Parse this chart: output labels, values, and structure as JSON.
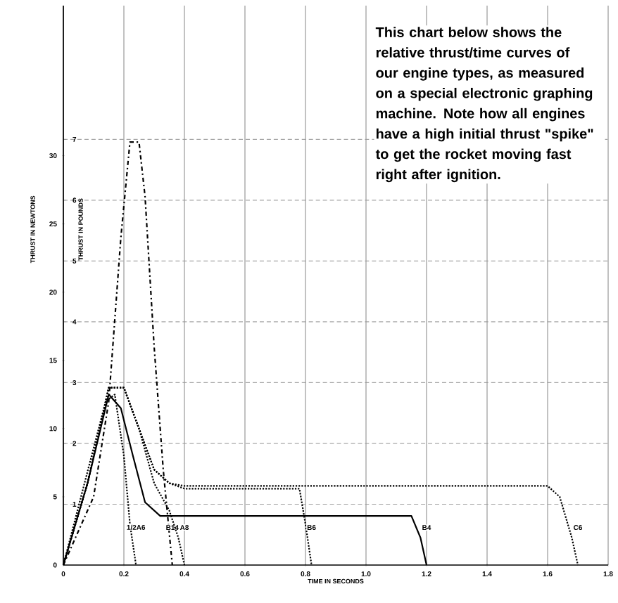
{
  "chart_data": {
    "type": "line",
    "xlabel": "TIME IN SECONDS",
    "ylabel": "THRUST IN NEWTONS",
    "y2label": "THRUST IN POUNDS",
    "annotations": [
      "This chart below shows the relative thrust/time curves of our engine types, as measured on a special electronic graphing machine. Note how all engines have a high initial thrust \"spike\" to get the rocket moving fast right after ignition."
    ],
    "xlim": [
      0,
      1.8
    ],
    "ylim": [
      0,
      41
    ],
    "y2lim": [
      0,
      9.2
    ],
    "xticks": [
      0,
      0.2,
      0.4,
      0.6,
      0.8,
      {
        "value": 1.0,
        "label": "1.0"
      },
      1.2,
      1.4,
      1.6,
      1.8
    ],
    "yticks": [
      0,
      5,
      10,
      15,
      20,
      25,
      30
    ],
    "y2ticks": [
      1,
      2,
      3,
      4,
      5,
      6,
      7
    ],
    "grid": true,
    "series": [
      {
        "name": "1/2A6",
        "color": "#000000",
        "line_style": "dotted",
        "x": [
          0,
          0.07,
          0.14,
          0.17,
          0.2,
          0.22,
          0.24
        ],
        "values": [
          0,
          6,
          12,
          12.5,
          8,
          3,
          0
        ]
      },
      {
        "name": "B14",
        "color": "#000000",
        "line_style": "dashdot",
        "x": [
          0,
          0.1,
          0.15,
          0.19,
          0.22,
          0.25,
          0.27,
          0.3,
          0.33,
          0.36
        ],
        "values": [
          0,
          5,
          12,
          24,
          31,
          31,
          27,
          16,
          7,
          0
        ]
      },
      {
        "name": "A8",
        "color": "#000000",
        "line_style": "dotted",
        "x": [
          0,
          0.08,
          0.15,
          0.2,
          0.25,
          0.3,
          0.35,
          0.38,
          0.4
        ],
        "values": [
          0,
          6,
          13,
          13,
          10,
          6,
          4,
          2,
          0
        ]
      },
      {
        "name": "B6",
        "color": "#000000",
        "line_style": "dotted",
        "x": [
          0,
          0.08,
          0.15,
          0.2,
          0.25,
          0.3,
          0.35,
          0.4,
          0.78,
          0.8,
          0.82
        ],
        "values": [
          0,
          6,
          13,
          13,
          10,
          7,
          6,
          5.6,
          5.6,
          3,
          0
        ]
      },
      {
        "name": "B4",
        "color": "#000000",
        "line_style": "solid",
        "x": [
          0,
          0.08,
          0.15,
          0.19,
          0.23,
          0.27,
          0.32,
          0.4,
          1.15,
          1.18,
          1.2
        ],
        "values": [
          0,
          6,
          12.5,
          11.5,
          8,
          4.6,
          3.6,
          3.6,
          3.6,
          2,
          0
        ]
      },
      {
        "name": "C6",
        "color": "#000000",
        "line_style": "dotted",
        "x": [
          0,
          0.08,
          0.15,
          0.2,
          0.25,
          0.3,
          0.35,
          0.4,
          1.6,
          1.64,
          1.68,
          1.7
        ],
        "values": [
          0,
          6,
          13,
          13,
          10,
          7,
          6,
          5.8,
          5.8,
          5,
          2,
          0
        ]
      }
    ]
  }
}
